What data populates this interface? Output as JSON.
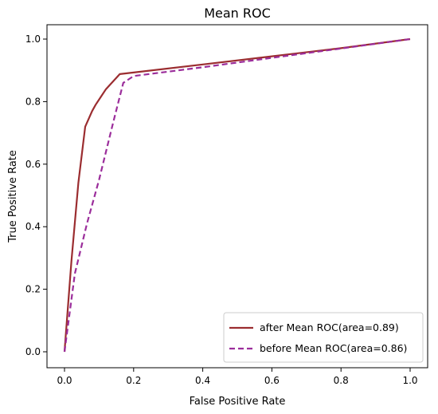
{
  "chart_data": {
    "type": "line",
    "title": "Mean ROC",
    "xlabel": "False Positive Rate",
    "ylabel": "True Positive Rate",
    "xlim": [
      0.0,
      1.0
    ],
    "ylim": [
      0.0,
      1.0
    ],
    "xticks": [
      "0.0",
      "0.2",
      "0.4",
      "0.6",
      "0.8",
      "1.0"
    ],
    "yticks": [
      "0.0",
      "0.2",
      "0.4",
      "0.6",
      "0.8",
      "1.0"
    ],
    "grid": false,
    "legend_position": "lower-right",
    "series": [
      {
        "name": "after Mean ROC(area=0.89)",
        "color": "#9b2d30",
        "style": "solid",
        "x": [
          0.0,
          0.02,
          0.04,
          0.06,
          0.08,
          0.09,
          0.12,
          0.16,
          0.2,
          0.4,
          0.6,
          0.8,
          1.0
        ],
        "y": [
          0.0,
          0.29,
          0.54,
          0.72,
          0.77,
          0.79,
          0.84,
          0.888,
          0.893,
          0.919,
          0.945,
          0.971,
          1.0
        ]
      },
      {
        "name": "before Mean ROC(area=0.86)",
        "color": "#9b2d9b",
        "style": "dashed",
        "x": [
          0.0,
          0.03,
          0.065,
          0.1,
          0.14,
          0.17,
          0.2,
          0.4,
          0.6,
          0.8,
          1.0
        ],
        "y": [
          0.0,
          0.25,
          0.41,
          0.55,
          0.73,
          0.86,
          0.882,
          0.91,
          0.94,
          0.97,
          1.0
        ]
      }
    ]
  }
}
